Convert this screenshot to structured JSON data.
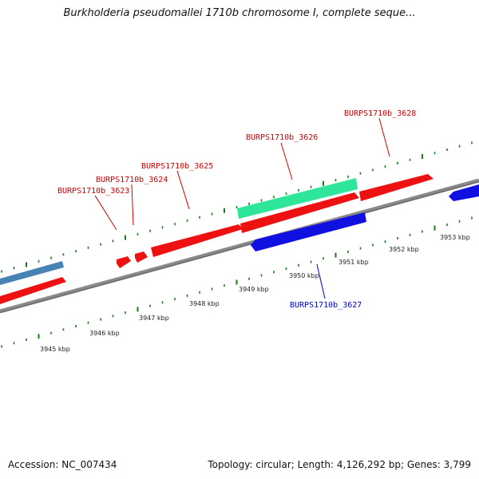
{
  "title": "Burkholderia pseudomallei 1710b chromosome I, complete seque...",
  "footer": {
    "accession": "Accession: NC_007434",
    "summary": "Topology: circular; Length: 4,126,292 bp; Genes: 3,799"
  },
  "colors": {
    "backbone": "#8a8a8a",
    "ticks": "#1a7a1a",
    "gene_forward": "#ee1111",
    "gene_reverse": "#1010e0",
    "gene_other": "#2ee69a",
    "gene_steel": "#4682b4",
    "label_forward": "#cc0000",
    "label_reverse": "#0000cc"
  },
  "scale_labels": [
    "3945 kbp",
    "3946 kbp",
    "3947 kbp",
    "3948 kbp",
    "3949 kbp",
    "3950 kbp",
    "3951 kbp",
    "3952 kbp",
    "3953 kbp"
  ],
  "gene_labels": [
    {
      "text": "BURPS1710b_3623",
      "strand": "forward"
    },
    {
      "text": "BURPS1710b_3624",
      "strand": "forward"
    },
    {
      "text": "BURPS1710b_3625",
      "strand": "forward"
    },
    {
      "text": "BURPS1710b_3626",
      "strand": "forward"
    },
    {
      "text": "BURPS1710b_3628",
      "strand": "forward"
    },
    {
      "text": "BURPS1710b_3627",
      "strand": "reverse"
    }
  ]
}
